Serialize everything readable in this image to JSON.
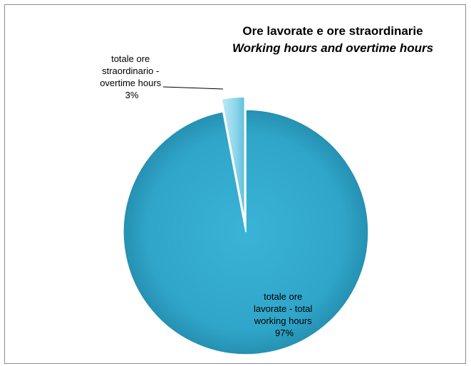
{
  "chart_data": {
    "type": "pie",
    "title": "Ore lavorate e ore straordinarie",
    "subtitle": "Working hours and overtime hours",
    "slices": [
      {
        "label_lines": [
          "totale ore",
          "lavorate - total",
          "working hours"
        ],
        "percent_label": "97%",
        "value": 97,
        "color": "#31A9CC"
      },
      {
        "label_lines": [
          "totale ore",
          "straordinario -",
          "overtime hours"
        ],
        "percent_label": "3%",
        "value": 3,
        "color": "#8ED6EA",
        "exploded": true
      }
    ],
    "legend": "none"
  }
}
